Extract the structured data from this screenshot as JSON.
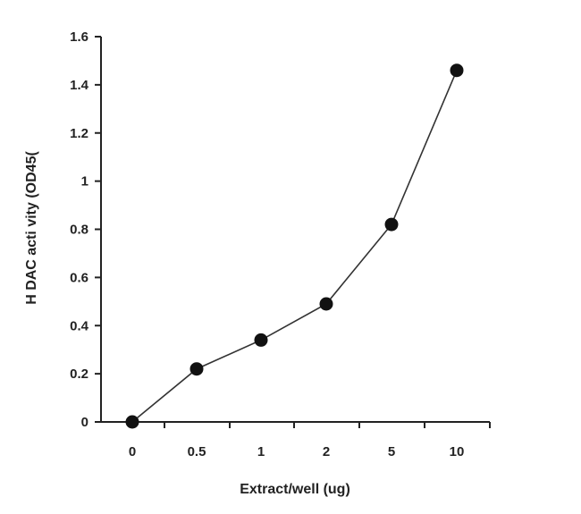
{
  "chart_data": {
    "type": "line",
    "title": "",
    "xlabel": "Extract/well (ug)",
    "ylabel": "H DAC acti vity (OD45(",
    "categories": [
      "0",
      "0.5",
      "1",
      "2",
      "5",
      "10"
    ],
    "series": [
      {
        "values": [
          0.0,
          0.22,
          0.34,
          0.49,
          0.82,
          1.46
        ]
      }
    ],
    "yticks": [
      "0",
      "0.2",
      "0.4",
      "0.6",
      "0.8",
      "1",
      "1.2",
      "1.4",
      "1.6"
    ],
    "ylim": [
      0,
      1.6
    ],
    "grid": false,
    "marker": "filled-circle",
    "colors": {
      "line": "#333333",
      "marker": "#111111",
      "axis": "#222222"
    }
  }
}
